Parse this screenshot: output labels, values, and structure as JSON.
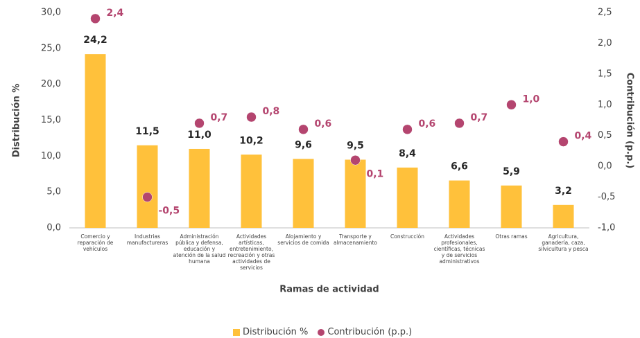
{
  "chart_data": {
    "type": "bar_dot",
    "categories": [
      "Comercio y reparación de vehículos",
      "Industrias manufactureras",
      "Administración pública y defensa, educación y atención de la salud humana",
      "Actividades artísticas, entretenimiento, recreación y otras actividades de servicios",
      "Alojamiento y servicios de comida",
      "Transporte y almacenamiento",
      "Construcción",
      "Actividades profesionales, científicas, técnicas y de servicios administrativos",
      "Otras ramas",
      "Agricultura, ganadería, caza, silvicultura y pesca"
    ],
    "series": [
      {
        "name": "Distribución %",
        "color": "#ffc13b",
        "values": [
          24.2,
          11.5,
          11.0,
          10.2,
          9.6,
          9.5,
          8.4,
          6.6,
          5.9,
          3.2
        ],
        "value_labels": [
          "24,2",
          "11,5",
          "11,0",
          "10,2",
          "9,6",
          "9,5",
          "8,4",
          "6,6",
          "5,9",
          "3,2"
        ]
      },
      {
        "name": "Contribución (p.p.)",
        "color": "#b4456f",
        "axis": "y2",
        "values": [
          2.4,
          -0.5,
          0.7,
          0.8,
          0.6,
          0.1,
          0.6,
          0.7,
          1.0,
          0.4
        ],
        "value_labels": [
          "2,4",
          "-0,5",
          "0,7",
          "0,8",
          "0,6",
          "0,1",
          "0,6",
          "0,7",
          "1,0",
          "0,4"
        ]
      }
    ],
    "xlabel": "Ramas de actividad",
    "ylabel": "Distribución %",
    "y2label": "Contribución (p.p.)",
    "ylim": [
      0,
      30
    ],
    "yticks": [
      {
        "value": 0,
        "label": "0,0"
      },
      {
        "value": 5,
        "label": "5,0"
      },
      {
        "value": 10,
        "label": "10,0"
      },
      {
        "value": 15,
        "label": "15,0"
      },
      {
        "value": 20,
        "label": "20,0"
      },
      {
        "value": 25,
        "label": "25,0"
      },
      {
        "value": 30,
        "label": "30,0"
      }
    ],
    "y2lim": [
      -1,
      2.5
    ],
    "y2ticks": [
      {
        "value": -1,
        "label": "-1,0"
      },
      {
        "value": -0.5,
        "label": "-0,5"
      },
      {
        "value": 0,
        "label": "0,0"
      },
      {
        "value": 0.5,
        "label": "0,5"
      },
      {
        "value": 1,
        "label": "1,0"
      },
      {
        "value": 1.5,
        "label": "1,5"
      },
      {
        "value": 2,
        "label": "2,0"
      },
      {
        "value": 2.5,
        "label": "2,5"
      }
    ],
    "legend": "bottom"
  }
}
